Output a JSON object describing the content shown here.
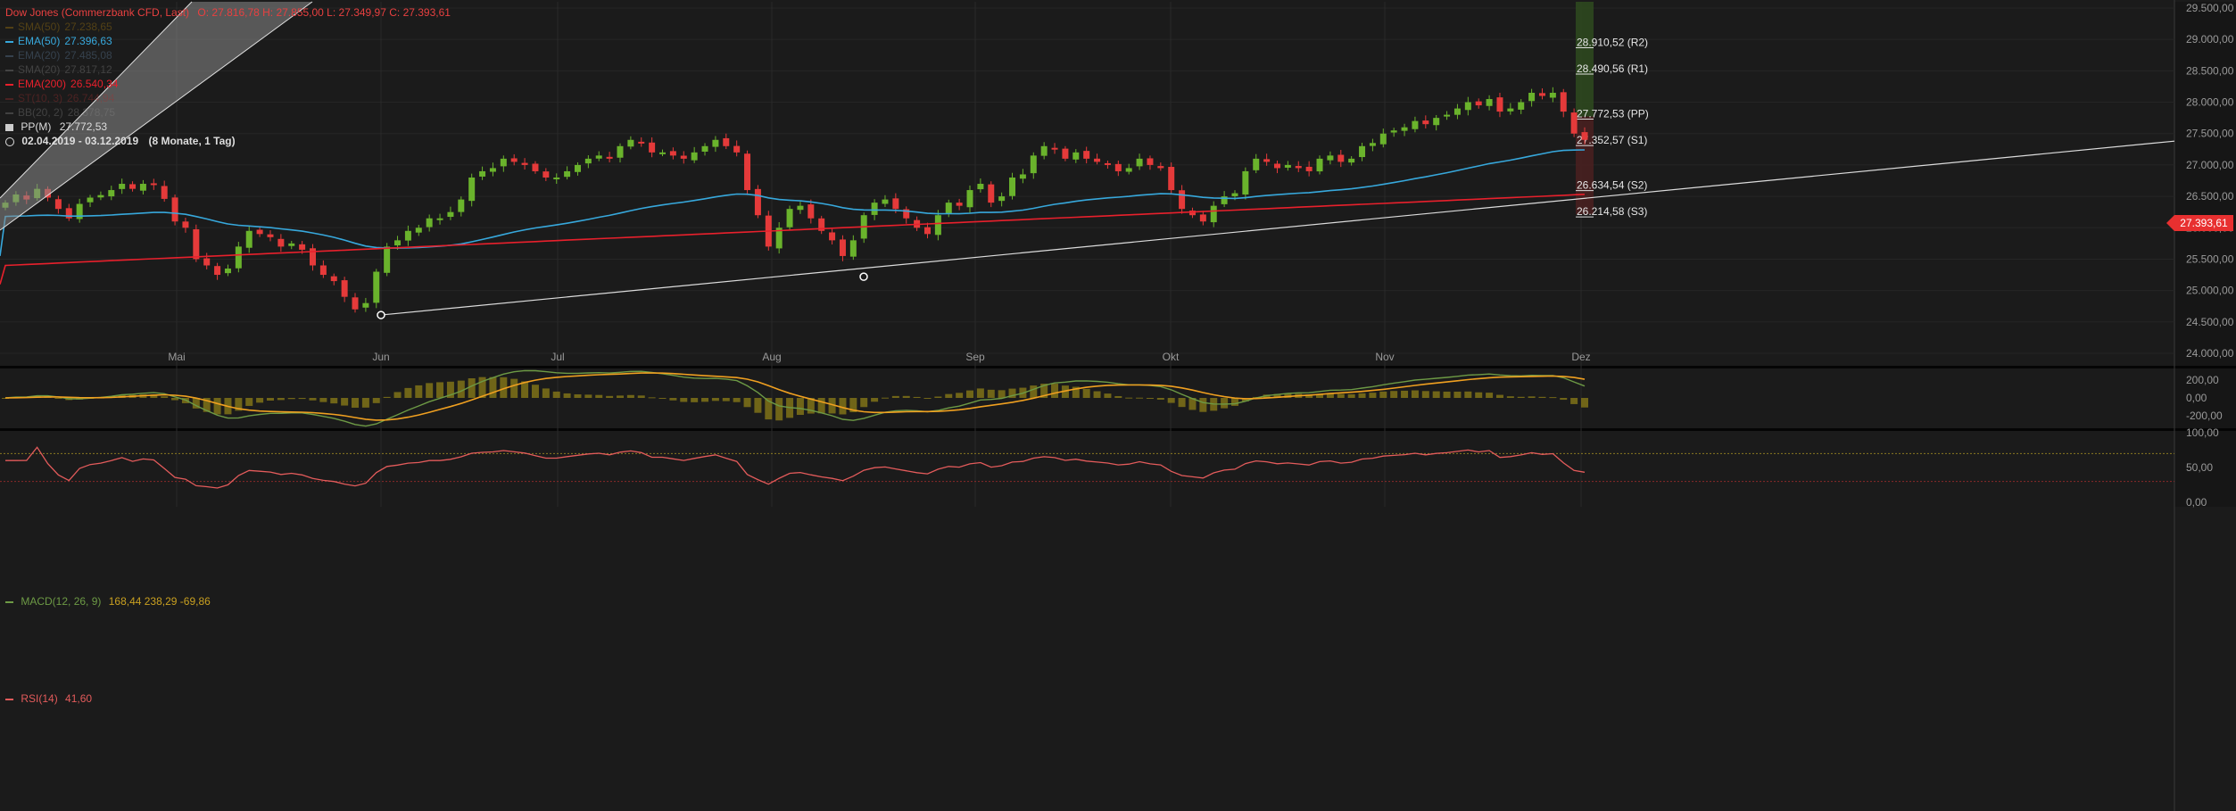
{
  "legend": {
    "title": "Dow Jones (Commerzbank CFD, Last)",
    "ohlc": "O: 27.816,78  H: 27.855,00  L: 27.349,97  C: 27.393,61",
    "indicators": [
      {
        "label": "SMA(50)",
        "value": "27.238,65",
        "color": "#b8860b",
        "dim": true
      },
      {
        "label": "EMA(50)",
        "value": "27.396,63",
        "color": "#37a8dc",
        "dim": false
      },
      {
        "label": "EMA(20)",
        "value": "27.485,08",
        "color": "#6688aa",
        "dim": true
      },
      {
        "label": "SMA(20)",
        "value": "27.817,12",
        "color": "#888888",
        "dim": true
      },
      {
        "label": "EMA(200)",
        "value": "26.540,34",
        "color": "#e8202c",
        "dim": false
      },
      {
        "label": "ST(10, 3)",
        "value": "26.744,94",
        "color": "#aa3030",
        "dim": true
      },
      {
        "label": "BB(20, 2)",
        "value": "28.378,75",
        "color": "#888888",
        "dim": true
      }
    ],
    "pivot_label": "PP(M)",
    "pivot_value": "27.772,53",
    "range": "02.04.2019 - 03.12.2019",
    "range_note": "(8 Monate, 1 Tag)"
  },
  "last_price": "27.393,61",
  "colors": {
    "bull": "#6ab32c",
    "bear": "#e53a3a",
    "ema50": "#37a8dc",
    "ema200": "#e8202c",
    "macd": "#6d9a45",
    "signal": "#f0a020",
    "hist": "#7a6e18",
    "rsi": "#e35b5b"
  },
  "chart_data": [
    {
      "type": "candlestick",
      "title": "Dow Jones (Commerzbank CFD, Last)",
      "x_labels": [
        "Mai",
        "Jun",
        "Jul",
        "Aug",
        "Sep",
        "Okt",
        "Nov",
        "Dez"
      ],
      "y_ticks": [
        "29.500,00",
        "29.000,00",
        "28.500,00",
        "28.000,00",
        "27.500,00",
        "27.000,00",
        "26.500,00",
        "26.000,00",
        "25.500,00",
        "25.000,00",
        "24.500,00",
        "24.000,00"
      ],
      "ylim": [
        24000,
        29500
      ],
      "pivots": [
        {
          "label": "28.910,52 (R2)",
          "value": 28910.52
        },
        {
          "label": "28.490,56 (R1)",
          "value": 28490.56
        },
        {
          "label": "27.772,53 (PP)",
          "value": 27772.53
        },
        {
          "label": "27.352,57 (S1)",
          "value": 27352.57
        },
        {
          "label": "26.634,54 (S2)",
          "value": 26634.54
        },
        {
          "label": "26.214,58 (S3)",
          "value": 26214.58
        }
      ],
      "closes": [
        26400,
        26530,
        26450,
        26620,
        26480,
        26300,
        26150,
        26380,
        26480,
        26520,
        26600,
        26700,
        26620,
        26700,
        26680,
        26460,
        26100,
        26000,
        25500,
        25400,
        25250,
        25350,
        25700,
        25950,
        25900,
        25850,
        25700,
        25750,
        25650,
        25400,
        25250,
        25150,
        24900,
        24700,
        24800,
        25300,
        25700,
        25800,
        25950,
        26000,
        26150,
        26150,
        26250,
        26450,
        26800,
        26900,
        26950,
        27100,
        27050,
        27000,
        26900,
        26800,
        26800,
        26900,
        27000,
        27100,
        27150,
        27100,
        27300,
        27400,
        27350,
        27200,
        27200,
        27150,
        27100,
        27200,
        27300,
        27400,
        27300,
        27200,
        26600,
        26200,
        25700,
        26000,
        26300,
        26350,
        26150,
        25950,
        25800,
        25550,
        25800,
        26200,
        26400,
        26450,
        26300,
        26150,
        26000,
        25900,
        26200,
        26400,
        26350,
        26600,
        26700,
        26400,
        26500,
        26800,
        26850,
        27150,
        27300,
        27250,
        27100,
        27200,
        27100,
        27050,
        27000,
        26900,
        26950,
        27100,
        27000,
        26950,
        26600,
        26300,
        26200,
        26100,
        26350,
        26500,
        26550,
        26900,
        27100,
        27050,
        26950,
        27000,
        26950,
        26900,
        27100,
        27150,
        27050,
        27100,
        27300,
        27350,
        27500,
        27550,
        27600,
        27700,
        27650,
        27750,
        27800,
        27900,
        28000,
        27950,
        28050,
        27850,
        27900,
        28000,
        28150,
        28100,
        28150,
        27850,
        27500,
        27400
      ]
    },
    {
      "type": "line",
      "title": "MACD(12, 26, 9)",
      "values_label": "168,44  238,29  -69,86",
      "y_ticks": [
        "200,00",
        "0,00",
        "-200,00"
      ]
    },
    {
      "type": "line",
      "title": "RSI(14)",
      "values_label": "41,60",
      "y_ticks": [
        "100,00",
        "50,00",
        "0,00"
      ]
    }
  ]
}
